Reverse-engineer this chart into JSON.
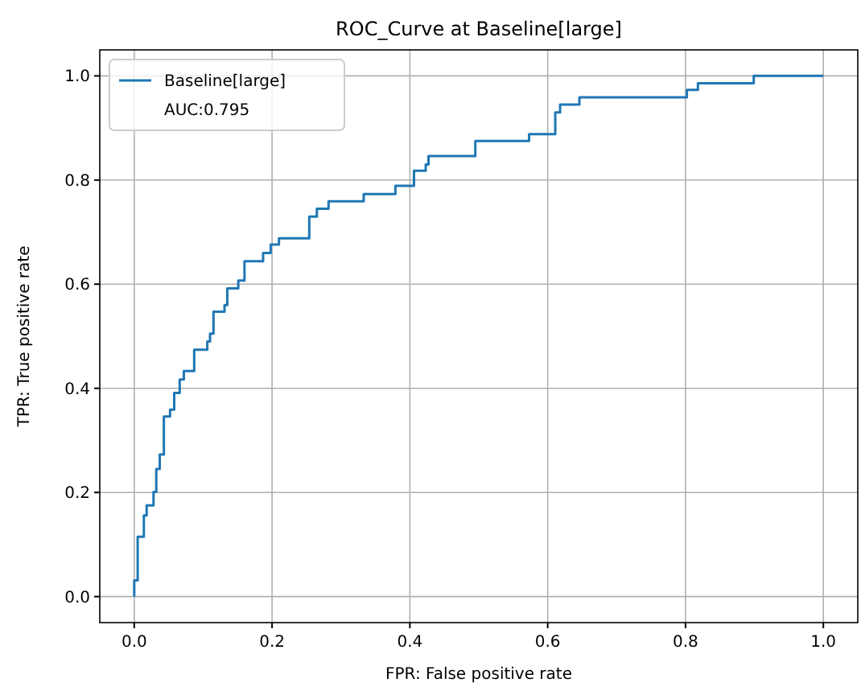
{
  "chart_data": {
    "type": "line",
    "title": "ROC_Curve at Baseline[large]",
    "xlabel": "FPR: False positive rate",
    "ylabel": "TPR: True positive rate",
    "series": [
      {
        "name": "Baseline[large]",
        "color": "#1f77b4",
        "x": [
          0,
          0,
          0.005,
          0.005,
          0.014,
          0.014,
          0.018,
          0.018,
          0.028,
          0.028,
          0.032,
          0.032,
          0.037,
          0.037,
          0.043,
          0.043,
          0.052,
          0.052,
          0.058,
          0.058,
          0.066,
          0.066,
          0.072,
          0.072,
          0.087,
          0.087,
          0.106,
          0.106,
          0.11,
          0.11,
          0.115,
          0.115,
          0.131,
          0.131,
          0.135,
          0.135,
          0.151,
          0.151,
          0.16,
          0.16,
          0.187,
          0.187,
          0.198,
          0.198,
          0.21,
          0.21,
          0.254,
          0.254,
          0.265,
          0.265,
          0.282,
          0.282,
          0.333,
          0.333,
          0.379,
          0.379,
          0.406,
          0.406,
          0.423,
          0.423,
          0.427,
          0.427,
          0.495,
          0.495,
          0.573,
          0.573,
          0.611,
          0.611,
          0.618,
          0.618,
          0.646,
          0.646,
          0.802,
          0.802,
          0.818,
          0.818,
          0.899,
          0.899,
          1
        ],
        "values": [
          0,
          0.031,
          0.031,
          0.115,
          0.115,
          0.156,
          0.156,
          0.175,
          0.175,
          0.201,
          0.201,
          0.245,
          0.245,
          0.273,
          0.273,
          0.346,
          0.346,
          0.359,
          0.359,
          0.391,
          0.391,
          0.417,
          0.417,
          0.433,
          0.433,
          0.474,
          0.474,
          0.49,
          0.49,
          0.505,
          0.505,
          0.547,
          0.547,
          0.56,
          0.56,
          0.592,
          0.592,
          0.607,
          0.607,
          0.644,
          0.644,
          0.66,
          0.66,
          0.676,
          0.676,
          0.688,
          0.688,
          0.73,
          0.73,
          0.745,
          0.745,
          0.759,
          0.759,
          0.773,
          0.773,
          0.789,
          0.789,
          0.818,
          0.818,
          0.83,
          0.83,
          0.846,
          0.846,
          0.875,
          0.875,
          0.888,
          0.888,
          0.93,
          0.93,
          0.945,
          0.945,
          0.959,
          0.959,
          0.973,
          0.973,
          0.986,
          0.986,
          1,
          1
        ]
      }
    ],
    "annotations": [
      "AUC:0.795"
    ],
    "xlim": [
      -0.05,
      1.05
    ],
    "ylim": [
      -0.05,
      1.05
    ],
    "xticks": [
      {
        "value": 0,
        "label": "0.0"
      },
      {
        "value": 0.2,
        "label": "0.2"
      },
      {
        "value": 0.4,
        "label": "0.4"
      },
      {
        "value": 0.6,
        "label": "0.6"
      },
      {
        "value": 0.8,
        "label": "0.8"
      },
      {
        "value": 1,
        "label": "1.0"
      }
    ],
    "yticks": [
      {
        "value": 0,
        "label": "0.0"
      },
      {
        "value": 0.2,
        "label": "0.2"
      },
      {
        "value": 0.4,
        "label": "0.4"
      },
      {
        "value": 0.6,
        "label": "0.6"
      },
      {
        "value": 0.8,
        "label": "0.8"
      },
      {
        "value": 1,
        "label": "1.0"
      }
    ],
    "grid": true,
    "legend": "top left",
    "line_style": "solid",
    "marker": "none"
  }
}
